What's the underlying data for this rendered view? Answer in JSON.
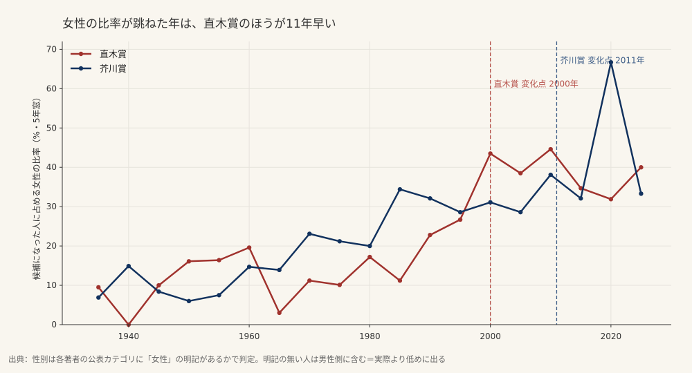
{
  "chart_data": {
    "type": "line",
    "title": "女性の比率が跳ねた年は、直木賞のほうが11年早い",
    "ylabel": "候補になった人に占める女性の比率（%・5年窓）",
    "xlabel": "",
    "source": "出典：性別は各著者の公表カテゴリに「女性」の明記があるかで判定。明記の無い人は男性側に含む＝実際より低めに出る",
    "xlim": [
      1929,
      2030
    ],
    "ylim": [
      0,
      72
    ],
    "xticks": [
      1940,
      1960,
      1980,
      2000,
      2020
    ],
    "yticks": [
      0,
      10,
      20,
      30,
      40,
      50,
      60,
      70
    ],
    "grid": true,
    "legend_position": "top-left",
    "x": [
      1935,
      1940,
      1945,
      1950,
      1955,
      1960,
      1965,
      1970,
      1975,
      1980,
      1985,
      1990,
      1995,
      2000,
      2005,
      2010,
      2015,
      2020,
      2025
    ],
    "series": [
      {
        "name": "直木賞",
        "color": "#a0322d",
        "values": [
          9.5,
          0,
          10,
          16.1,
          16.4,
          19.6,
          3,
          11.2,
          10.1,
          17.2,
          11.2,
          22.8,
          26.7,
          43.5,
          38.5,
          44.6,
          34.7,
          31.9,
          40
        ]
      },
      {
        "name": "芥川賞",
        "color": "#12325e",
        "values": [
          6.9,
          14.9,
          8.4,
          6,
          7.5,
          14.7,
          13.9,
          23.1,
          21.2,
          20,
          34.4,
          32.1,
          28.6,
          31.1,
          28.6,
          38.1,
          32.1,
          66.7,
          33.3
        ]
      }
    ],
    "annotations": [
      {
        "x": 2000,
        "label": "直木賞 変化点 2000年",
        "color": "#b6524b",
        "label_y": 60.5
      },
      {
        "x": 2011,
        "label": "芥川賞 変化点 2011年",
        "color": "#3b5b85",
        "label_y": 66.5
      }
    ]
  }
}
